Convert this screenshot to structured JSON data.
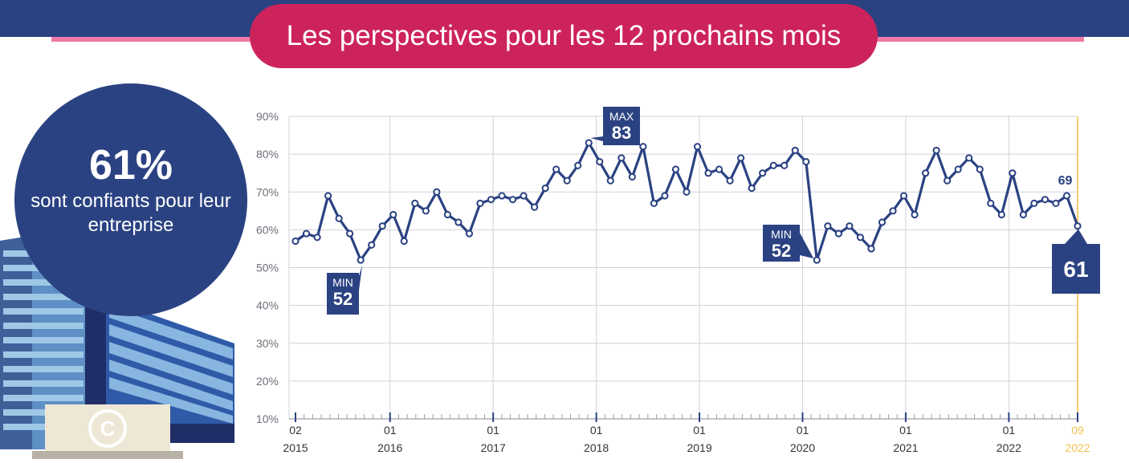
{
  "header": {
    "title": "Les perspectives pour les 12 prochains mois"
  },
  "highlight": {
    "value": "61%",
    "text": "sont confiants pour leur entreprise"
  },
  "colors": {
    "navy": "#2b4282",
    "pink": "#cd235c",
    "light_pink": "#f07aa8",
    "gold": "#f2c14e",
    "grid": "#d0d3da"
  },
  "icons": {
    "building": "office-building-icon",
    "copyright": "copyright-icon"
  },
  "chart_data": {
    "type": "line",
    "title": "",
    "xlabel": "",
    "ylabel": "",
    "ylim": [
      10,
      90
    ],
    "y_ticks": [
      "10%",
      "20%",
      "30%",
      "40%",
      "50%",
      "60%",
      "70%",
      "80%",
      "90%"
    ],
    "x_ticks": [
      {
        "month": "02",
        "year": "2015"
      },
      {
        "month": "01",
        "year": "2016"
      },
      {
        "month": "01",
        "year": "2017"
      },
      {
        "month": "01",
        "year": "2018"
      },
      {
        "month": "01",
        "year": "2019"
      },
      {
        "month": "01",
        "year": "2020"
      },
      {
        "month": "01",
        "year": "2021"
      },
      {
        "month": "01",
        "year": "2022"
      },
      {
        "month": "09",
        "year": "2022"
      }
    ],
    "grid": true,
    "series": [
      {
        "values": [
          57,
          59,
          58,
          69,
          63,
          59,
          52,
          56,
          61,
          64,
          57,
          67,
          65,
          70,
          64,
          62,
          59,
          67,
          68,
          69,
          68,
          69,
          66,
          71,
          76,
          73,
          77,
          83,
          78,
          73,
          79,
          74,
          82,
          67,
          69,
          76,
          70,
          82,
          75,
          76,
          73,
          79,
          71,
          75,
          77,
          77,
          81,
          78,
          52,
          61,
          59,
          61,
          58,
          55,
          62,
          65,
          69,
          64,
          75,
          81,
          73,
          76,
          79,
          76,
          67,
          64,
          75,
          64,
          67,
          68,
          67,
          69,
          61
        ]
      }
    ],
    "annotations": [
      {
        "label": "MIN",
        "value": "52"
      },
      {
        "label": "MAX",
        "value": "83"
      },
      {
        "label": "MIN",
        "value": "52"
      },
      {
        "label": "",
        "value": "69"
      },
      {
        "label": "",
        "value": "61"
      }
    ]
  }
}
